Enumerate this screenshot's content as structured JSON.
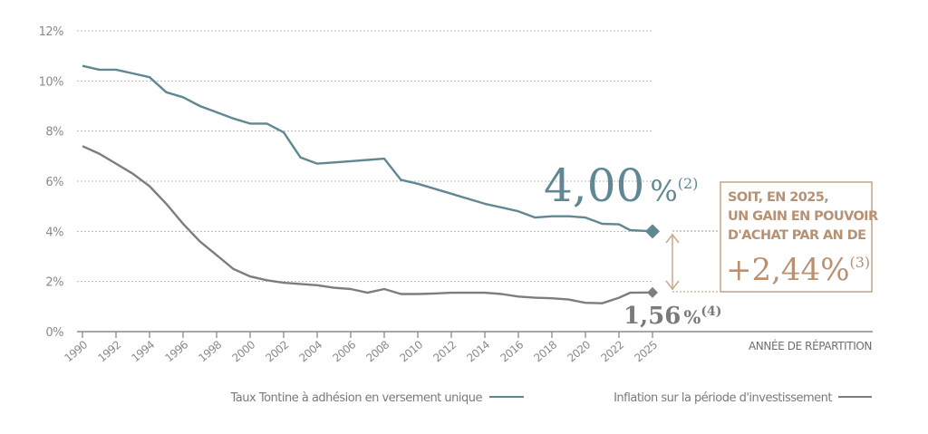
{
  "chart_data": {
    "type": "line",
    "title": "",
    "xlabel": "ANNÉE DE RÉPARTITION",
    "ylabel": "",
    "ylim": [
      0,
      12
    ],
    "y_ticks": [
      "0%",
      "2%",
      "4%",
      "6%",
      "8%",
      "10%",
      "12%"
    ],
    "y_tick_values": [
      0,
      2,
      4,
      6,
      8,
      10,
      12
    ],
    "x_ticks": [
      "1990",
      "1992",
      "1994",
      "1996",
      "1998",
      "2000",
      "2002",
      "2004",
      "2006",
      "2008",
      "2010",
      "2012",
      "2014",
      "2016",
      "2018",
      "2020",
      "2022",
      "2025"
    ],
    "grid": "horizontal dotted",
    "legend_placement": "bottom",
    "x": [
      1990,
      1991,
      1992,
      1993,
      1994,
      1995,
      1996,
      1997,
      1998,
      1999,
      2000,
      2001,
      2002,
      2003,
      2004,
      2005,
      2006,
      2007,
      2008,
      2009,
      2010,
      2011,
      2012,
      2013,
      2014,
      2015,
      2016,
      2017,
      2018,
      2019,
      2020,
      2021,
      2022,
      2023,
      2025
    ],
    "series": [
      {
        "name": "Taux Tontine à adhésion en versement unique",
        "color": "#5f8794",
        "values": [
          10.6,
          10.45,
          10.45,
          10.3,
          10.15,
          9.55,
          9.35,
          9.0,
          8.75,
          8.5,
          8.3,
          8.3,
          7.95,
          6.95,
          6.7,
          6.75,
          6.8,
          6.85,
          6.9,
          6.05,
          5.9,
          5.7,
          5.5,
          5.3,
          5.1,
          4.95,
          4.8,
          4.55,
          4.6,
          4.6,
          4.55,
          4.3,
          4.28,
          4.05,
          4.0
        ],
        "end_marker": "diamond"
      },
      {
        "name": "Inflation sur la période d'investissement",
        "color": "#7d7d7d",
        "values": [
          7.4,
          7.1,
          6.7,
          6.3,
          5.8,
          5.1,
          4.3,
          3.6,
          3.05,
          2.5,
          2.2,
          2.05,
          1.95,
          1.9,
          1.85,
          1.75,
          1.7,
          1.55,
          1.7,
          1.5,
          1.5,
          1.52,
          1.55,
          1.55,
          1.55,
          1.5,
          1.4,
          1.35,
          1.33,
          1.28,
          1.15,
          1.13,
          1.35,
          1.55,
          1.56
        ],
        "end_marker": "diamond"
      }
    ],
    "annotations": {
      "tontine_value": {
        "number": "4,00",
        "unit": "%",
        "note": "(2)"
      },
      "inflation_value": {
        "number": "1,56",
        "unit": "%",
        "note": "(4)"
      },
      "gain_box": {
        "lines": [
          "SOIT, EN 2025,",
          "UN GAIN EN POUVOIR",
          "D'ACHAT PAR AN DE"
        ],
        "value": "+2,44%",
        "note": "(3)",
        "color": "#b89173"
      }
    },
    "legend": [
      {
        "label": "Taux Tontine à adhésion en versement unique",
        "color": "#5f8794"
      },
      {
        "label": "Inflation sur la période d'investissement",
        "color": "#7d7d7d"
      }
    ]
  }
}
